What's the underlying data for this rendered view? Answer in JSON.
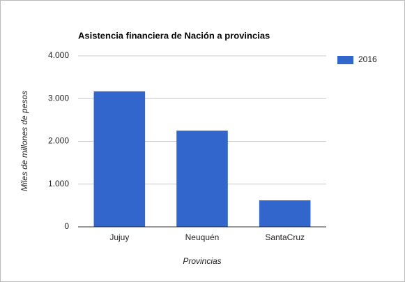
{
  "chart_data": {
    "type": "bar",
    "title": "Asistencia financiera de Nación a provincias",
    "x_label": "Provincias",
    "y_label": "Miles de millones de pesos",
    "categories": [
      "Jujuy",
      "Neuquén",
      "SantaCruz"
    ],
    "series": [
      {
        "name": "2016",
        "color": "#3366cc",
        "values": [
          3170,
          2250,
          620
        ]
      }
    ],
    "ylim": [
      0,
      4000
    ],
    "yticks": [
      0,
      {
        "value": 1000,
        "label": "1.000"
      },
      {
        "value": 2000,
        "label": "2.000"
      },
      {
        "value": 3000,
        "label": "3.000"
      },
      {
        "value": 4000,
        "label": "4.000"
      }
    ],
    "grid": true,
    "legend": "right"
  }
}
